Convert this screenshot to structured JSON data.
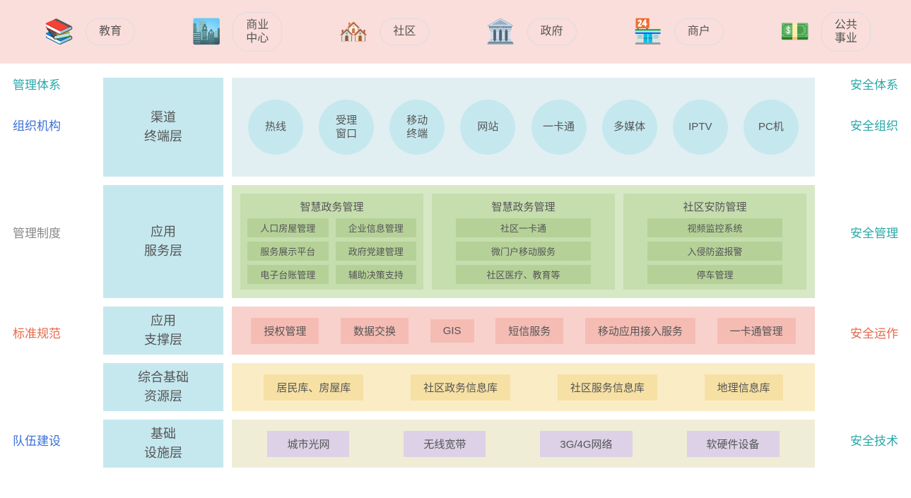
{
  "colors": {
    "top_bar_bg": "#fadedb",
    "layer_label_bg": "#c5e8ef",
    "row1_bg": "#e1eff2",
    "circle_bg": "#c5e8ef",
    "row2_bg": "#d7e8c6",
    "green_block_bg": "#c6ddae",
    "green_item_bg": "#b5d198",
    "row3_bg": "#f8d1cc",
    "pink_box_bg": "#f5bcb4",
    "row4_bg": "#faecc5",
    "yellow_box_bg": "#f6e0a3",
    "row5_bg": "#efedd6",
    "purple_box_bg": "#dcd1e6",
    "text": "#555555",
    "teal": "#2aa8a8",
    "gray": "#888888",
    "blue": "#3a6fd8",
    "orange": "#e56a4b"
  },
  "top": {
    "items": [
      {
        "label": "教育",
        "icon": "📚"
      },
      {
        "label": "商业\n中心",
        "icon": "🏙️"
      },
      {
        "label": "社区",
        "icon": "🏘️"
      },
      {
        "label": "政府",
        "icon": "🏛️"
      },
      {
        "label": "商户",
        "icon": "🏪"
      },
      {
        "label": "公共\n事业",
        "icon": "💵"
      }
    ]
  },
  "left": {
    "title": "管理体系",
    "labels": [
      "组织机构",
      "管理制度",
      "标准规范",
      "队伍建设"
    ],
    "label_colors": [
      "blue",
      "gray",
      "orange",
      "blue"
    ]
  },
  "right": {
    "title": "安全体系",
    "labels": [
      "安全组织",
      "安全管理",
      "安全运作",
      "安全技术"
    ],
    "label_colors": [
      "teal",
      "teal",
      "orange",
      "teal"
    ]
  },
  "layers": {
    "row1": {
      "name": "渠道\n终端层",
      "circles": [
        "热线",
        "受理\n窗口",
        "移动\n终端",
        "网站",
        "一卡通",
        "多媒体",
        "IPTV",
        "PC机"
      ]
    },
    "row2": {
      "name": "应用\n服务层",
      "blocks": [
        {
          "title": "智慧政务管理",
          "layout": "two-col",
          "items": [
            "人口房屋管理",
            "企业信息管理",
            "服务展示平台",
            "政府党建管理",
            "电子台账管理",
            "辅助决策支持"
          ]
        },
        {
          "title": "智慧政务管理",
          "layout": "one-col",
          "items": [
            "社区一卡通",
            "微门户移动服务",
            "社区医疗、教育等"
          ]
        },
        {
          "title": "社区安防管理",
          "layout": "one-col",
          "items": [
            "视频监控系统",
            "入侵防盗报警",
            "停车管理"
          ]
        }
      ]
    },
    "row3": {
      "name": "应用\n支撑层",
      "items": [
        "授权管理",
        "数据交换",
        "GIS",
        "短信服务",
        "移动应用接入服务",
        "一卡通管理"
      ]
    },
    "row4": {
      "name": "综合基础\n资源层",
      "items": [
        "居民库、房屋库",
        "社区政务信息库",
        "社区服务信息库",
        "地理信息库"
      ]
    },
    "row5": {
      "name": "基础\n设施层",
      "items": [
        "城市光网",
        "无线宽带",
        "3G/4G网络",
        "软硬件设备"
      ]
    }
  }
}
